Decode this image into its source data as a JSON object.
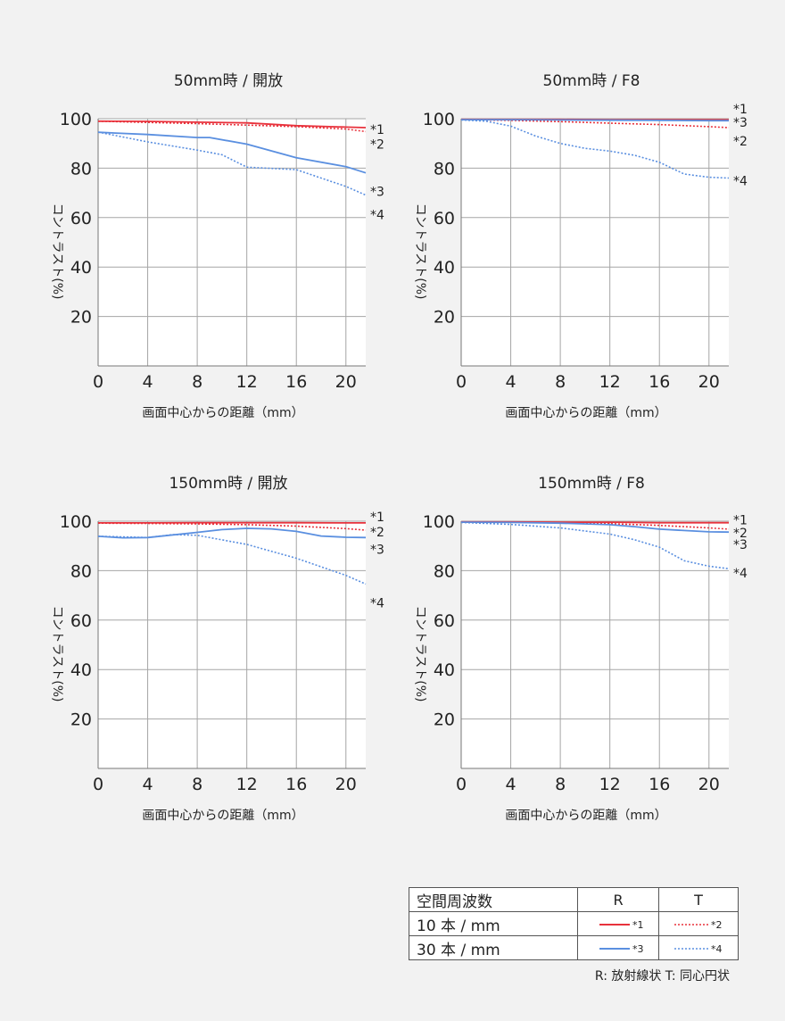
{
  "chart_data": [
    {
      "type": "line",
      "title": "50mm時 / 開放",
      "xlabel": "画面中心からの距離（mm）",
      "ylabel": "コントラスト(%)",
      "xlim": [
        0,
        21.6
      ],
      "ylim": [
        0,
        100
      ],
      "xticks": [
        0,
        4,
        8,
        12,
        16,
        20
      ],
      "yticks": [
        20,
        40,
        60,
        80,
        100
      ],
      "grid": true,
      "series": [
        {
          "name": "*1",
          "x": [
            0,
            4,
            8,
            12,
            16,
            20,
            21.6
          ],
          "y": [
            99,
            98.9,
            98.6,
            98.3,
            97.2,
            96.6,
            96.4
          ]
        },
        {
          "name": "*2",
          "x": [
            0,
            4,
            8,
            12,
            16,
            20,
            21.6
          ],
          "y": [
            99,
            98.5,
            98,
            97.4,
            96.8,
            95.8,
            94.8
          ]
        },
        {
          "name": "*3",
          "x": [
            0,
            4,
            8,
            9,
            12,
            16,
            20,
            21.6
          ],
          "y": [
            94.5,
            93.6,
            92.4,
            92.4,
            89.7,
            84.2,
            80.6,
            78.1
          ]
        },
        {
          "name": "*4",
          "x": [
            0,
            4,
            8,
            10,
            12,
            16,
            20,
            21.6
          ],
          "y": [
            94.6,
            90.6,
            87.3,
            85.4,
            80.4,
            79.4,
            72.6,
            69.1
          ]
        }
      ]
    },
    {
      "type": "line",
      "title": "50mm時 / F8",
      "xlabel": "画面中心からの距離（mm）",
      "ylabel": "コントラスト(%)",
      "xlim": [
        0,
        21.6
      ],
      "ylim": [
        0,
        100
      ],
      "xticks": [
        0,
        4,
        8,
        12,
        16,
        20
      ],
      "yticks": [
        20,
        40,
        60,
        80,
        100
      ],
      "grid": true,
      "series": [
        {
          "name": "*1",
          "x": [
            0,
            4,
            8,
            12,
            16,
            20,
            21.6
          ],
          "y": [
            99.7,
            99.7,
            99.7,
            99.6,
            99.6,
            99.6,
            99.6
          ]
        },
        {
          "name": "*2",
          "x": [
            0,
            4,
            8,
            12,
            16,
            20,
            21.6
          ],
          "y": [
            99.6,
            99.3,
            98.8,
            98.2,
            97.6,
            96.8,
            96.4
          ]
        },
        {
          "name": "*3",
          "x": [
            0,
            4,
            8,
            12,
            16,
            20,
            21.6
          ],
          "y": [
            99.6,
            99.6,
            99.5,
            99.4,
            99.3,
            99.2,
            99.2
          ]
        },
        {
          "name": "*4",
          "x": [
            0,
            2,
            4,
            6,
            8,
            10,
            12,
            14,
            16,
            18,
            20,
            21.6
          ],
          "y": [
            99.5,
            99,
            97,
            93,
            90,
            88,
            86.9,
            85.2,
            82.4,
            77.6,
            76.3,
            76
          ]
        }
      ]
    },
    {
      "type": "line",
      "title": "150mm時 / 開放",
      "xlabel": "画面中心からの距離（mm）",
      "ylabel": "コントラスト(%)",
      "xlim": [
        0,
        21.6
      ],
      "ylim": [
        0,
        100
      ],
      "xticks": [
        0,
        4,
        8,
        12,
        16,
        20
      ],
      "yticks": [
        20,
        40,
        60,
        80,
        100
      ],
      "grid": true,
      "series": [
        {
          "name": "*1",
          "x": [
            0,
            4,
            8,
            12,
            16,
            20,
            21.6
          ],
          "y": [
            99.3,
            99.3,
            99.4,
            99.4,
            99.4,
            99.3,
            99.3
          ]
        },
        {
          "name": "*2",
          "x": [
            0,
            4,
            8,
            12,
            16,
            20,
            21.6
          ],
          "y": [
            99.2,
            99.1,
            98.9,
            98.6,
            98,
            97,
            96.4
          ]
        },
        {
          "name": "*3",
          "x": [
            0,
            2,
            4,
            8,
            10,
            12,
            14,
            16,
            18,
            20,
            21.6
          ],
          "y": [
            93.9,
            93.3,
            93.4,
            95.5,
            96.6,
            97.1,
            96.9,
            95.9,
            94,
            93.5,
            93.4
          ]
        },
        {
          "name": "*4",
          "x": [
            0,
            4,
            6,
            8,
            12,
            16,
            20,
            21.6
          ],
          "y": [
            93.9,
            93.4,
            94.6,
            94.3,
            90.6,
            85,
            78.1,
            74.6
          ]
        }
      ]
    },
    {
      "type": "line",
      "title": "150mm時 / F8",
      "xlabel": "画面中心からの距離（mm）",
      "ylabel": "コントラスト(%)",
      "xlim": [
        0,
        21.6
      ],
      "ylim": [
        0,
        100
      ],
      "xticks": [
        0,
        4,
        8,
        12,
        16,
        20
      ],
      "yticks": [
        20,
        40,
        60,
        80,
        100
      ],
      "grid": true,
      "series": [
        {
          "name": "*1",
          "x": [
            0,
            4,
            8,
            12,
            16,
            20,
            21.6
          ],
          "y": [
            99.7,
            99.7,
            99.6,
            99.6,
            99.4,
            99.4,
            99.4
          ]
        },
        {
          "name": "*2",
          "x": [
            0,
            4,
            8,
            12,
            16,
            20,
            21.6
          ],
          "y": [
            99.7,
            99.6,
            99.4,
            99,
            98.3,
            97.3,
            96.8
          ]
        },
        {
          "name": "*3",
          "x": [
            0,
            4,
            8,
            12,
            14,
            16,
            20,
            21.6
          ],
          "y": [
            99.6,
            99.5,
            99.2,
            98.6,
            97.8,
            96.8,
            95.7,
            95.6
          ]
        },
        {
          "name": "*4",
          "x": [
            0,
            4,
            8,
            12,
            14,
            16,
            18,
            20,
            21.6
          ],
          "y": [
            99.5,
            98.7,
            97.3,
            94.8,
            92.5,
            89.5,
            84,
            81.8,
            80.8
          ]
        }
      ]
    }
  ],
  "series_styles": {
    "*1": {
      "color": "#e8323c",
      "dash": "solid"
    },
    "*2": {
      "color": "#e8323c",
      "dash": "dotted"
    },
    "*3": {
      "color": "#5a8fe0",
      "dash": "solid"
    },
    "*4": {
      "color": "#5a8fe0",
      "dash": "dotted"
    }
  },
  "legend": {
    "header_label": "空間周波数",
    "col_r": "R",
    "col_t": "T",
    "rows": [
      {
        "label": "10 本 / mm",
        "r_key": "*1",
        "t_key": "*2"
      },
      {
        "label": "30 本 / mm",
        "r_key": "*3",
        "t_key": "*4"
      }
    ],
    "note": "R: 放射線状  T: 同心円状"
  }
}
